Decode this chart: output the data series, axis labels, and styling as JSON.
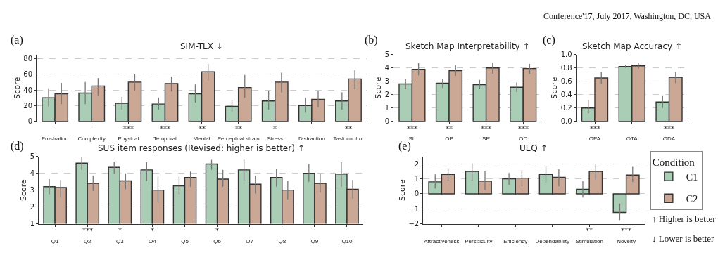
{
  "chart_data": [
    {
      "type": "bar",
      "title": "SIM-TLX ↓",
      "ylabel": "Score",
      "categories": [
        "Frustration",
        "Complexity",
        "Physical",
        "Temporal",
        "Mental",
        "Perceptual strain",
        "Stress",
        "Distraction",
        "Task control"
      ],
      "series": [
        {
          "color": "#aacdb5",
          "values": [
            30,
            36,
            23,
            22,
            35,
            19,
            26,
            20,
            26
          ],
          "errors": [
            [
              19,
              42
            ],
            [
              22,
              50
            ],
            [
              15,
              31
            ],
            [
              15,
              30
            ],
            [
              24,
              47
            ],
            [
              12,
              27
            ],
            [
              15,
              39
            ],
            [
              11,
              30
            ],
            [
              15,
              37
            ]
          ]
        },
        {
          "color": "#cba796",
          "values": [
            35,
            45,
            50,
            48,
            63,
            43,
            50,
            28,
            54
          ],
          "errors": [
            [
              22,
              49
            ],
            [
              33,
              55
            ],
            [
              39,
              60
            ],
            [
              38,
              57
            ],
            [
              52,
              73
            ],
            [
              30,
              59
            ],
            [
              37,
              62
            ],
            [
              18,
              39
            ],
            [
              41,
              65
            ]
          ]
        }
      ],
      "ylim": [
        0,
        85
      ],
      "yticks": [
        0,
        20,
        40,
        60,
        80
      ],
      "grid": "y",
      "legend": false,
      "annotations": [
        "(a)",
        "Conference'17, July 2017, Washington, DC, USA",
        "***",
        "***",
        "**",
        "**",
        "*",
        "**"
      ]
    },
    {
      "type": "bar",
      "title": "Sketch Map Interpretability ↑",
      "ylabel": "Score",
      "categories": [
        "SL",
        "OP",
        "SR",
        "OD"
      ],
      "series": [
        {
          "color": "#aacdb5",
          "values": [
            2.8,
            2.85,
            2.75,
            2.55
          ],
          "errors": [
            [
              2.4,
              3.15
            ],
            [
              2.5,
              3.2
            ],
            [
              2.4,
              3.1
            ],
            [
              2.2,
              2.9
            ]
          ]
        },
        {
          "color": "#cba796",
          "values": [
            3.9,
            3.8,
            4.0,
            3.95
          ],
          "errors": [
            [
              3.45,
              4.35
            ],
            [
              3.4,
              4.2
            ],
            [
              3.55,
              4.4
            ],
            [
              3.55,
              4.3
            ]
          ]
        }
      ],
      "ylim": [
        0,
        5
      ],
      "yticks": [
        0,
        1,
        2,
        3,
        4,
        5
      ],
      "grid": "y",
      "legend": false,
      "annotations": [
        "(b)",
        "***",
        "**",
        "***",
        "***"
      ]
    },
    {
      "type": "bar",
      "title": "Sketch Map Accuracy ↑",
      "ylabel": "Score",
      "categories": [
        "OPA",
        "OTA",
        "ODA"
      ],
      "series": [
        {
          "color": "#aacdb5",
          "values": [
            0.2,
            0.82,
            0.29
          ],
          "errors": [
            [
              0.12,
              0.32
            ],
            [
              0.8,
              0.84
            ],
            [
              0.2,
              0.39
            ]
          ]
        },
        {
          "color": "#cba796",
          "values": [
            0.65,
            0.83,
            0.66
          ],
          "errors": [
            [
              0.56,
              0.74
            ],
            [
              0.79,
              0.88
            ],
            [
              0.57,
              0.74
            ]
          ]
        }
      ],
      "ylim": [
        0,
        1
      ],
      "yticks": [
        {
          "value": 0,
          "label": "0.0"
        },
        0.2,
        0.4,
        0.6,
        0.8,
        {
          "value": 1,
          "label": "1.0"
        }
      ],
      "grid": "y",
      "legend": false,
      "annotations": [
        "(c)",
        "***",
        "***"
      ]
    },
    {
      "type": "bar",
      "title": "SUS item responses (Revised: higher is better) ↑",
      "ylabel": "Score",
      "categories": [
        "Q1",
        "Q2",
        "Q3",
        "Q4",
        "Q5",
        "Q6",
        "Q7",
        "Q8",
        "Q9",
        "Q10"
      ],
      "series": [
        {
          "color": "#aacdb5",
          "values": [
            3.2,
            4.6,
            4.35,
            4.2,
            3.25,
            4.55,
            4.2,
            3.75,
            4.0,
            3.95
          ],
          "errors": [
            [
              2.75,
              3.65
            ],
            [
              4.2,
              4.95
            ],
            [
              3.95,
              4.7
            ],
            [
              3.55,
              4.65
            ],
            [
              2.75,
              3.8
            ],
            [
              4.2,
              4.8
            ],
            [
              3.55,
              4.8
            ],
            [
              3.2,
              4.25
            ],
            [
              3.5,
              4.55
            ],
            [
              3.2,
              4.65
            ]
          ]
        },
        {
          "color": "#cba796",
          "values": [
            3.15,
            3.4,
            3.55,
            3.0,
            3.75,
            3.65,
            3.35,
            3.0,
            3.4,
            3.05
          ],
          "errors": [
            [
              2.6,
              3.6
            ],
            [
              2.95,
              3.85
            ],
            [
              3.05,
              4.0
            ],
            [
              2.25,
              3.8
            ],
            [
              3.2,
              4.1
            ],
            [
              3.2,
              4.2
            ],
            [
              2.8,
              3.85
            ],
            [
              2.45,
              3.55
            ],
            [
              2.85,
              3.95
            ],
            [
              2.5,
              3.6
            ]
          ]
        }
      ],
      "ylim": [
        1,
        5
      ],
      "yticks": [
        1,
        2,
        3,
        4,
        5
      ],
      "grid": "y",
      "legend": false,
      "annotations": [
        "(d)",
        "***",
        "*",
        "*",
        "*"
      ]
    },
    {
      "type": "bar",
      "title": "UEQ ↑",
      "ylabel": "Score",
      "categories": [
        "Attractiveness",
        "Perspicuity",
        "Efficiency",
        "Dependability",
        "Stimulation",
        "Novelty"
      ],
      "series": [
        {
          "name": "C1",
          "color": "#aacdb5",
          "values": [
            0.8,
            1.5,
            1.0,
            1.3,
            0.3,
            -1.25
          ],
          "errors": [
            [
              0.35,
              1.3
            ],
            [
              0.9,
              2.05
            ],
            [
              0.6,
              1.4
            ],
            [
              0.75,
              1.8
            ],
            [
              -0.25,
              0.85
            ],
            [
              -1.75,
              -0.65
            ]
          ]
        },
        {
          "name": "C2",
          "color": "#cba796",
          "values": [
            1.3,
            0.85,
            1.05,
            1.1,
            1.5,
            1.25
          ],
          "errors": [
            [
              0.9,
              1.7
            ],
            [
              0.25,
              1.5
            ],
            [
              0.5,
              1.6
            ],
            [
              0.5,
              1.65
            ],
            [
              0.95,
              2.0
            ],
            [
              0.8,
              1.8
            ]
          ]
        }
      ],
      "ylim": [
        -2,
        2.5
      ],
      "yticks": [
        {
          "value": -2,
          "label": "−2"
        },
        {
          "value": -1,
          "label": "−1"
        },
        0,
        1,
        2
      ],
      "grid": "y",
      "legend": "right",
      "legend_title": "Condition",
      "annotations": [
        "(e)",
        "↑ Higher is better",
        "↓ Lower is better",
        "**",
        "***"
      ]
    }
  ]
}
